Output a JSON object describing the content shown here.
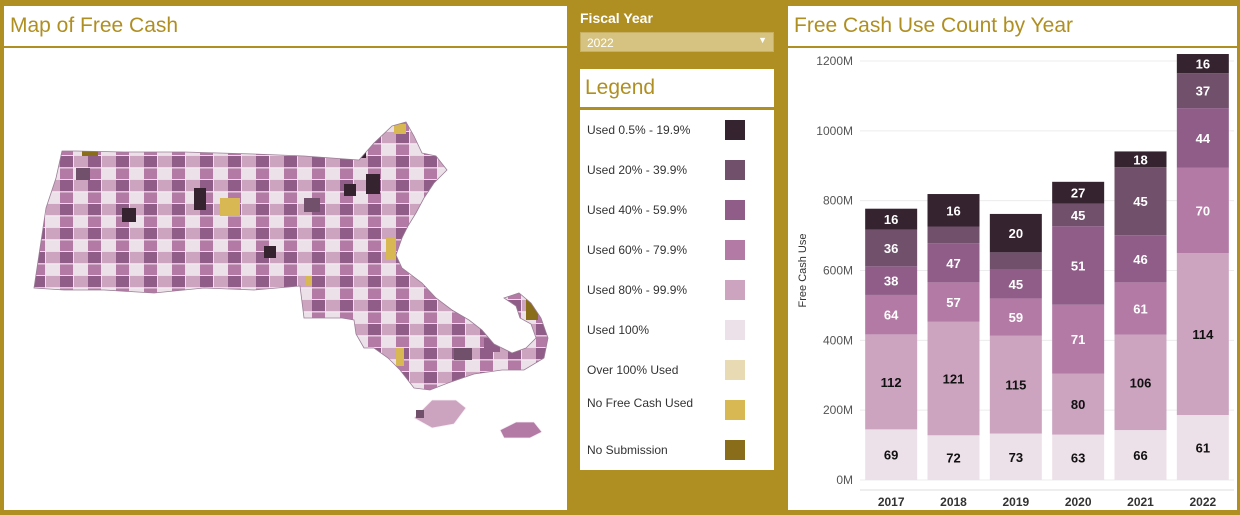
{
  "map": {
    "title": "Map of Free Cash"
  },
  "filter": {
    "label": "Fiscal Year",
    "selected": "2022"
  },
  "legend": {
    "title": "Legend",
    "items": [
      {
        "label": "Used 0.5% - 19.9%",
        "color": "#35232f"
      },
      {
        "label": "Used 20% - 39.9%",
        "color": "#70506a"
      },
      {
        "label": "Used 40% - 59.9%",
        "color": "#8f5d88"
      },
      {
        "label": "Used 60% - 79.9%",
        "color": "#b37aa6"
      },
      {
        "label": "Used 80% - 99.9%",
        "color": "#cda4c0"
      },
      {
        "label": "Used 100%",
        "color": "#ede1e9"
      },
      {
        "label": "Over 100% Used",
        "color": "#e8dbb3"
      },
      {
        "label": "No Free Cash Used",
        "color": "#d8b853"
      },
      {
        "label": "No Submission",
        "color": "#8a6d1a"
      }
    ]
  },
  "chart_data": {
    "type": "bar",
    "stacked": true,
    "title": "Free Cash Use Count by Year",
    "xlabel": "",
    "ylabel": "Free Cash Use",
    "ylim": [
      0,
      1200
    ],
    "yticks": [
      0,
      200,
      400,
      600,
      800,
      1000,
      1200
    ],
    "ytick_labels": [
      "0M",
      "200M",
      "400M",
      "600M",
      "800M",
      "1000M",
      "1200M"
    ],
    "categories": [
      "2017",
      "2018",
      "2019",
      "2020",
      "2021",
      "2022"
    ],
    "series": [
      {
        "name": "Used 100%",
        "color": "#ede1e9",
        "values": [
          145,
          128,
          133,
          130,
          143,
          186
        ],
        "labels": [
          "69",
          "72",
          "73",
          "63",
          "66",
          "61"
        ]
      },
      {
        "name": "Used 80% - 99.9%",
        "color": "#cda4c0",
        "values": [
          272,
          325,
          280,
          175,
          273,
          464
        ],
        "labels": [
          "112",
          "121",
          "115",
          "80",
          "106",
          "114"
        ]
      },
      {
        "name": "Used 60% - 79.9%",
        "color": "#b37aa6",
        "values": [
          113,
          113,
          107,
          197,
          150,
          245
        ],
        "labels": [
          "64",
          "57",
          "59",
          "71",
          "61",
          "70"
        ]
      },
      {
        "name": "Used 40% - 59.9%",
        "color": "#8f5d88",
        "values": [
          82,
          112,
          82,
          225,
          135,
          170
        ],
        "labels": [
          "38",
          "47",
          "45",
          "51",
          "46",
          "44"
        ]
      },
      {
        "name": "Used 20% - 39.9%",
        "color": "#70506a",
        "values": [
          105,
          48,
          50,
          65,
          195,
          100
        ],
        "labels": [
          "36",
          "",
          "",
          "45",
          "45",
          "37"
        ]
      },
      {
        "name": "Used 0.5% - 19.9%",
        "color": "#35232f",
        "values": [
          60,
          93,
          110,
          62,
          45,
          55
        ],
        "labels": [
          "16",
          "16",
          "20",
          "27",
          "18",
          "16"
        ]
      }
    ]
  }
}
